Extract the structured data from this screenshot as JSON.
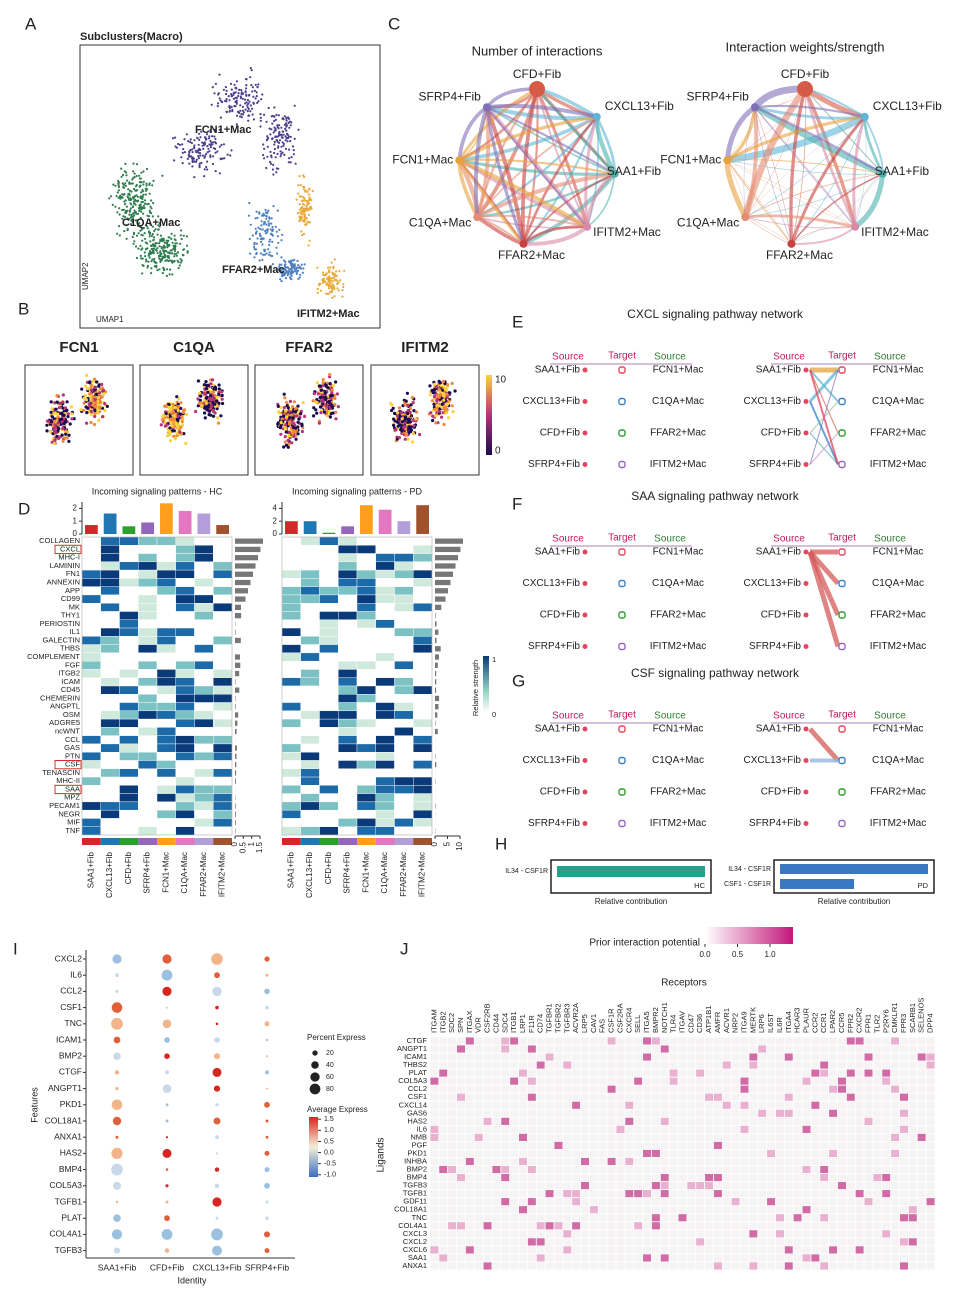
{
  "A": {
    "letter": "A",
    "title": "Subclusters(Macro)",
    "clusters": [
      "FCN1+Mac",
      "C1QA+Mac",
      "FFAR2+Mac",
      "IFITM2+Mac"
    ],
    "xlabel": "UMAP1",
    "ylabel": "UMAP2"
  },
  "B": {
    "letter": "B",
    "genes": [
      "FCN1",
      "C1QA",
      "FFAR2",
      "IFITM2"
    ],
    "scale": [
      10,
      0
    ]
  },
  "C": {
    "letter": "C",
    "titles": [
      "Number of interactions",
      "Interaction weights/strength"
    ],
    "nodes": [
      "CFD+Fib",
      "CXCL13+Fib",
      "SAA1+Fib",
      "IFITM2+Mac",
      "FFAR2+Mac",
      "C1QA+Mac",
      "FCN1+Mac",
      "SFRP4+Fib"
    ]
  },
  "D": {
    "letter": "D",
    "titles": [
      "Incoming signaling patterns - HC",
      "Incoming signaling patterns - PD"
    ],
    "rows": [
      "COLLAGEN",
      "CXCL",
      "MHC-I",
      "LAMININ",
      "FN1",
      "ANNEXIN",
      "APP",
      "CD99",
      "MK",
      "THY1",
      "PERIOSTIN",
      "IL1",
      "GALECTIN",
      "THBS",
      "COMPLEMENT",
      "FGF",
      "ITGB2",
      "ICAM",
      "CD45",
      "CHEMERIN",
      "ANGPTL",
      "OSM",
      "ADGRE5",
      "ncWNT",
      "CCL",
      "GAS",
      "PTN",
      "CSF",
      "TENASCIN",
      "MHC-II",
      "SAA",
      "MPZ",
      "PECAM1",
      "NEGR",
      "MIF",
      "TNF"
    ],
    "columns": [
      "SAA1+Fib",
      "CXCL13+Fib",
      "CFD+Fib",
      "SFRP4+Fib",
      "FCN1+Mac",
      "C1QA+Mac",
      "FFAR2+Mac",
      "IFITM2+Mac"
    ],
    "column_colors": [
      "#d62728",
      "#1f77b4",
      "#2ca02c",
      "#9467bd",
      "#ff9f1c",
      "#e377c2",
      "#b39ddb",
      "#a0522d"
    ],
    "top_values": [
      [
        0.7,
        1.6,
        0.6,
        0.9,
        2.4,
        1.8,
        1.6,
        0.7
      ],
      [
        2.0,
        2.0,
        0.2,
        1.2,
        4.5,
        3.8,
        2.0,
        4.5
      ]
    ],
    "top_ylim": [
      [
        0,
        2.5
      ],
      [
        0,
        5
      ]
    ],
    "top_ticks": [
      [
        0,
        1,
        2
      ],
      [
        0,
        2,
        4
      ]
    ],
    "side_ticks": [
      [
        0,
        0.5,
        1,
        1.5
      ],
      [
        0,
        5,
        10
      ]
    ],
    "legend_title": "Relative strength",
    "legend_ticks": [
      1,
      0
    ]
  },
  "networks": {
    "letters": [
      "E",
      "F",
      "G"
    ],
    "titles": [
      "CXCL signaling pathway network",
      "SAA signaling pathway network",
      "CSF signaling pathway network"
    ],
    "headers": [
      "Source",
      "Target",
      "Source"
    ],
    "sources": [
      "SAA1+Fib",
      "CXCL13+Fib",
      "CFD+Fib",
      "SFRP4+Fib"
    ],
    "targets": [
      "FCN1+Mac",
      "C1QA+Mac",
      "FFAR2+Mac",
      "IFITM2+Mac"
    ]
  },
  "H": {
    "letter": "H",
    "hc_pairs": [
      "IL34 - CSF1R"
    ],
    "hc_values": [
      1.0
    ],
    "pd_pairs": [
      "IL34 - CSF1R",
      "CSF1 - CSF1R"
    ],
    "pd_values": [
      1.0,
      0.5
    ],
    "groups": [
      "HC",
      "PD"
    ],
    "xlabel": "Relative contribution"
  },
  "I": {
    "letter": "I",
    "genes": [
      "CXCL2",
      "IL6",
      "CCL2",
      "CSF1",
      "TNC",
      "ICAM1",
      "BMP2",
      "CTGF",
      "ANGPT1",
      "PKD1",
      "COL18A1",
      "ANXA1",
      "HAS2",
      "BMP4",
      "COL5A3",
      "TGFB1",
      "PLAT",
      "COL4A1",
      "TGFB3"
    ],
    "identities": [
      "SAA1+Fib",
      "CFD+Fib",
      "CXCL13+Fib",
      "SFRP4+Fib"
    ],
    "xlabel": "Identity",
    "ylabel": "Features",
    "size_title": "Percent Express",
    "size_ticks": [
      20,
      40,
      60,
      80
    ],
    "color_title": "Average Express",
    "color_ticks": [
      1.5,
      {
        "value": 1,
        "label": "1.0"
      },
      0.5,
      {
        "value": 0,
        "label": "0.0"
      },
      -0.5,
      {
        "value": -1,
        "label": "-1.0"
      }
    ]
  },
  "J": {
    "letter": "J",
    "legend_title": "Prior interaction potential",
    "legend_ticks": [
      {
        "value": 0,
        "label": "0.0"
      },
      0.5,
      {
        "value": 1,
        "label": "1.0"
      }
    ],
    "xlabel": "Receptors",
    "ylabel": "Ligands",
    "ligands": [
      "CTGF",
      "ANGPT1",
      "ICAM1",
      "THBS2",
      "PLAT",
      "COL5A3",
      "CCL2",
      "CSF1",
      "CXCL14",
      "GAS6",
      "HAS2",
      "IL6",
      "NMB",
      "PGF",
      "PKD1",
      "INHBA",
      "BMP2",
      "BMP4",
      "TGFB3",
      "TGFB1",
      "GDF11",
      "COL18A1",
      "TNC",
      "COL4A1",
      "CXCL3",
      "CXCL2",
      "CXCL6",
      "SAA1",
      "ANXA1"
    ],
    "receptors": [
      "ITGAM",
      "ITGB2",
      "SDC2",
      "SPN",
      "ITGAX",
      "VDR",
      "CSF2RB",
      "CD44",
      "SDC4",
      "ITGB1",
      "LRP1",
      "F11R",
      "CD74",
      "TGFBR1",
      "TGFBR2",
      "TGFBR3",
      "ACVR2A",
      "LRP5",
      "CAV1",
      "FAS",
      "CSF1R",
      "CSF2RA",
      "CXCR4",
      "SELL",
      "ITGA5",
      "BMPR2",
      "NOTCH1",
      "TLR4",
      "ITGAV",
      "CD47",
      "CD36",
      "ATP1B1",
      "AMFR",
      "ACVR1",
      "NRP2",
      "ITGA9",
      "MERTK",
      "LRP6",
      "IL6ST",
      "IL6R",
      "ITGA4",
      "HCAR3",
      "PLAUR",
      "CCR2",
      "CCR1",
      "LPAR2",
      "CCR5",
      "FPR2",
      "CXCR2",
      "FPR1",
      "TLR2",
      "P2RY6",
      "CMKLR1",
      "FPR3",
      "SCARB1",
      "SELENOS",
      "DPP4"
    ]
  }
}
